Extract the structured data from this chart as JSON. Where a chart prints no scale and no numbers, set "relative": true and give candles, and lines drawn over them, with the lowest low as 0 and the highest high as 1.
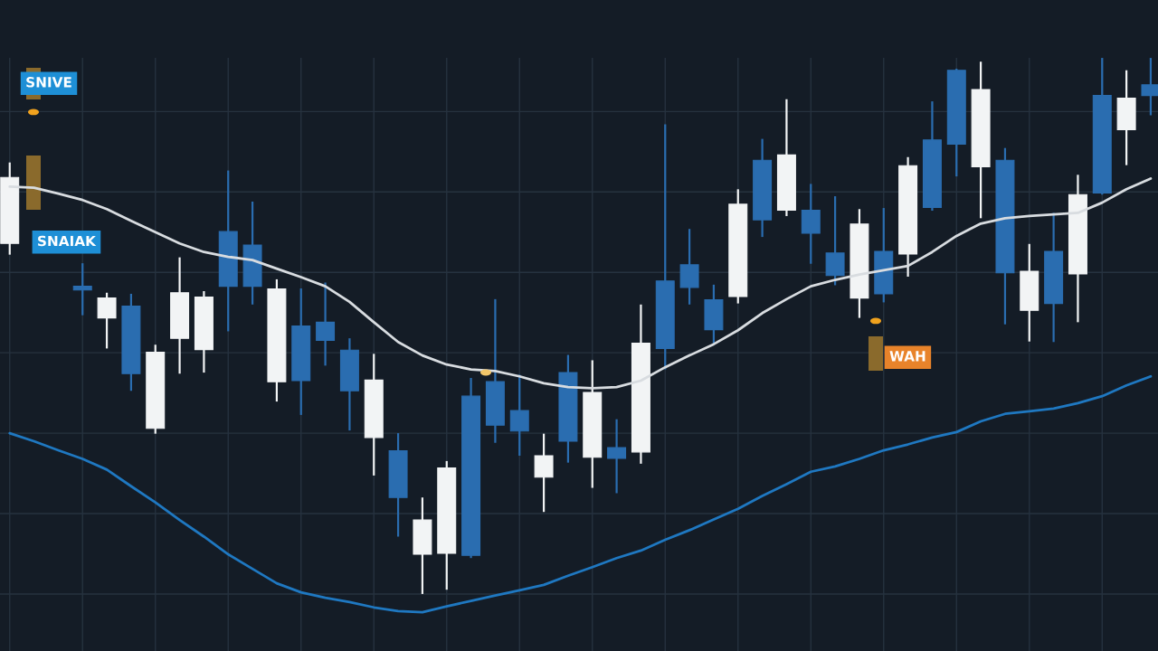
{
  "chart_data": {
    "type": "candlestick",
    "relative": true,
    "grid": true,
    "categories": [
      null,
      null,
      null,
      null,
      null,
      null,
      null,
      null,
      null,
      null,
      null,
      null,
      null,
      null,
      null,
      null,
      null,
      null,
      null,
      null,
      null,
      null,
      null,
      null,
      null,
      null,
      null,
      null,
      null,
      null,
      null,
      null,
      null,
      null,
      null,
      null,
      null,
      null,
      null,
      null,
      null,
      null,
      null,
      null,
      null,
      null,
      null,
      null
    ],
    "ohlc": [
      [
        0.654,
        0.805,
        0.633,
        0.777
      ],
      null,
      null,
      [
        0.574,
        0.617,
        0.52,
        0.567
      ],
      [
        0.515,
        0.562,
        0.458,
        0.552
      ],
      [
        0.537,
        0.56,
        0.379,
        0.411
      ],
      [
        0.309,
        0.465,
        0.299,
        0.451
      ],
      [
        0.477,
        0.628,
        0.411,
        0.562
      ],
      [
        0.456,
        0.565,
        0.413,
        0.554
      ],
      [
        0.676,
        0.79,
        0.49,
        0.574
      ],
      [
        0.651,
        0.732,
        0.54,
        0.574
      ],
      [
        0.396,
        0.587,
        0.359,
        0.569
      ],
      [
        0.5,
        0.57,
        0.334,
        0.398
      ],
      [
        0.507,
        0.581,
        0.426,
        0.473
      ],
      [
        0.455,
        0.477,
        0.305,
        0.379
      ],
      [
        0.292,
        0.448,
        0.221,
        0.399
      ],
      [
        0.267,
        0.3,
        0.107,
        0.18
      ],
      [
        0.074,
        0.18,
        0,
        0.138
      ],
      [
        0.076,
        0.248,
        0.008,
        0.235
      ],
      [
        0.369,
        0.403,
        0.067,
        0.072
      ],
      [
        0.396,
        0.55,
        0.282,
        0.315
      ],
      [
        0.342,
        0.409,
        0.258,
        0.304
      ],
      [
        0.218,
        0.299,
        0.153,
        0.258
      ],
      [
        0.413,
        0.446,
        0.245,
        0.285
      ],
      [
        0.255,
        0.436,
        0.198,
        0.376
      ],
      [
        0.273,
        0.326,
        0.188,
        0.253
      ],
      [
        0.265,
        0.54,
        0.243,
        0.468
      ],
      [
        0.584,
        0.876,
        0.419,
        0.458
      ],
      [
        0.614,
        0.681,
        0.54,
        0.572
      ],
      [
        0.549,
        0.577,
        0.466,
        0.493
      ],
      [
        0.555,
        0.755,
        0.542,
        0.727
      ],
      [
        0.809,
        0.849,
        0.666,
        0.698
      ],
      [
        0.716,
        0.923,
        0.705,
        0.819
      ],
      [
        0.716,
        0.765,
        0.616,
        0.673
      ],
      [
        0.636,
        0.742,
        0.576,
        0.594
      ],
      [
        0.552,
        0.718,
        0.515,
        0.69
      ],
      [
        0.639,
        0.72,
        0.544,
        0.56
      ],
      [
        0.634,
        0.815,
        0.592,
        0.799
      ],
      [
        0.847,
        0.919,
        0.715,
        0.721
      ],
      [
        0.977,
        0.98,
        0.779,
        0.839
      ],
      [
        0.797,
        0.993,
        0.701,
        0.941
      ],
      [
        0.809,
        0.832,
        0.503,
        0.599
      ],
      [
        0.529,
        0.653,
        0.471,
        0.602
      ],
      [
        0.639,
        0.711,
        0.47,
        0.542
      ],
      [
        0.597,
        0.782,
        0.507,
        0.745
      ],
      [
        0.93,
        1,
        0.745,
        0.748
      ],
      [
        0.866,
        0.977,
        0.8,
        0.925
      ],
      [
        0.95,
        1,
        0.893,
        0.93
      ]
    ],
    "colors": [
      "#f2f4f5",
      null,
      null,
      "#2a6db0",
      "#f2f4f5",
      "#2a6db0",
      "#f2f4f5",
      "#f2f4f5",
      "#f2f4f5",
      "#2a6db0",
      "#2a6db0",
      "#f2f4f5",
      "#2a6db0",
      "#2a6db0",
      "#2a6db0",
      "#f2f4f5",
      "#2a6db0",
      "#f2f4f5",
      "#f2f4f5",
      "#2a6db0",
      "#2a6db0",
      "#2a6db0",
      "#f2f4f5",
      "#2a6db0",
      "#f2f4f5",
      "#2a6db0",
      "#f2f4f5",
      "#2a6db0",
      "#2a6db0",
      "#2a6db0",
      "#f2f4f5",
      "#2a6db0",
      "#f2f4f5",
      "#2a6db0",
      "#2a6db0",
      "#f2f4f5",
      "#2a6db0",
      "#f2f4f5",
      "#2a6db0",
      "#2a6db0",
      "#f2f4f5",
      "#2a6db0",
      "#f2f4f5",
      "#2a6db0",
      "#f2f4f5",
      "#2a6db0",
      "#f2f4f5",
      "#2a6db0"
    ],
    "series": [
      {
        "type": "line",
        "color": "#d8dce0",
        "values": [
          0.76,
          0.758,
          0.747,
          0.735,
          0.718,
          0.696,
          0.675,
          0.654,
          0.638,
          0.629,
          0.623,
          0.607,
          0.591,
          0.574,
          0.545,
          0.507,
          0.47,
          0.445,
          0.428,
          0.419,
          0.416,
          0.406,
          0.393,
          0.386,
          0.384,
          0.386,
          0.398,
          0.423,
          0.445,
          0.466,
          0.492,
          0.524,
          0.55,
          0.574,
          0.586,
          0.596,
          0.604,
          0.612,
          0.638,
          0.668,
          0.691,
          0.701,
          0.705,
          0.708,
          0.711,
          0.73,
          0.755,
          0.775
        ]
      },
      {
        "type": "line",
        "color": "#1f78c1",
        "values": [
          0.3,
          0.285,
          0.268,
          0.252,
          0.232,
          0.201,
          0.171,
          0.138,
          0.107,
          0.074,
          0.047,
          0.02,
          0.003,
          -0.007,
          -0.015,
          -0.025,
          -0.032,
          -0.034,
          -0.023,
          -0.013,
          -0.003,
          0.007,
          0.017,
          0.034,
          0.05,
          0.067,
          0.081,
          0.101,
          0.119,
          0.139,
          0.159,
          0.183,
          0.205,
          0.228,
          0.238,
          0.252,
          0.268,
          0.279,
          0.292,
          0.302,
          0.322,
          0.336,
          0.341,
          0.346,
          0.356,
          0.369,
          0.389,
          0.406
        ]
      }
    ],
    "annotations": [
      "SNIVE",
      "SNAIAK",
      "WAH"
    ]
  }
}
